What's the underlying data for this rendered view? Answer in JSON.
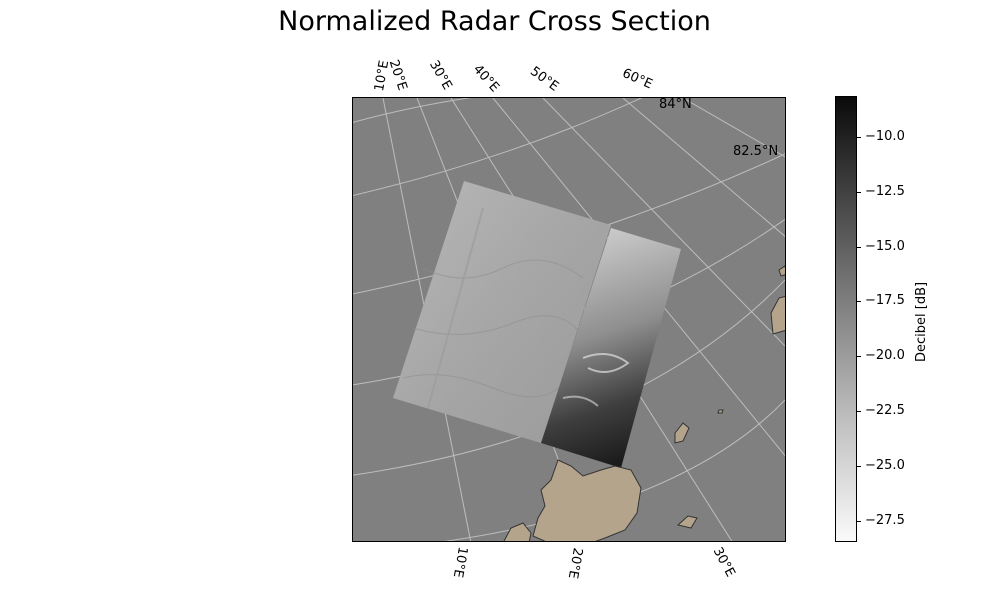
{
  "title": "Normalized Radar Cross Section",
  "map": {
    "top_lon_labels": [
      "10°E",
      "20°E",
      "30°E",
      "40°E",
      "50°E",
      "60°E"
    ],
    "bottom_lon_labels": [
      "10°E",
      "20°E",
      "30°E"
    ],
    "lat_labels": [
      "84°N",
      "82.5°N"
    ],
    "ocean_color": "#808080",
    "land_color": "#b5a48c",
    "graticule_color": "#bdbdbd"
  },
  "colorbar": {
    "label": "Decibel [dB]",
    "ticks": [
      "−10.0",
      "−12.5",
      "−15.0",
      "−17.5",
      "−20.0",
      "−22.5",
      "−25.0",
      "−27.5"
    ],
    "colormap": "gray reversed (white = low, black = high)"
  }
}
